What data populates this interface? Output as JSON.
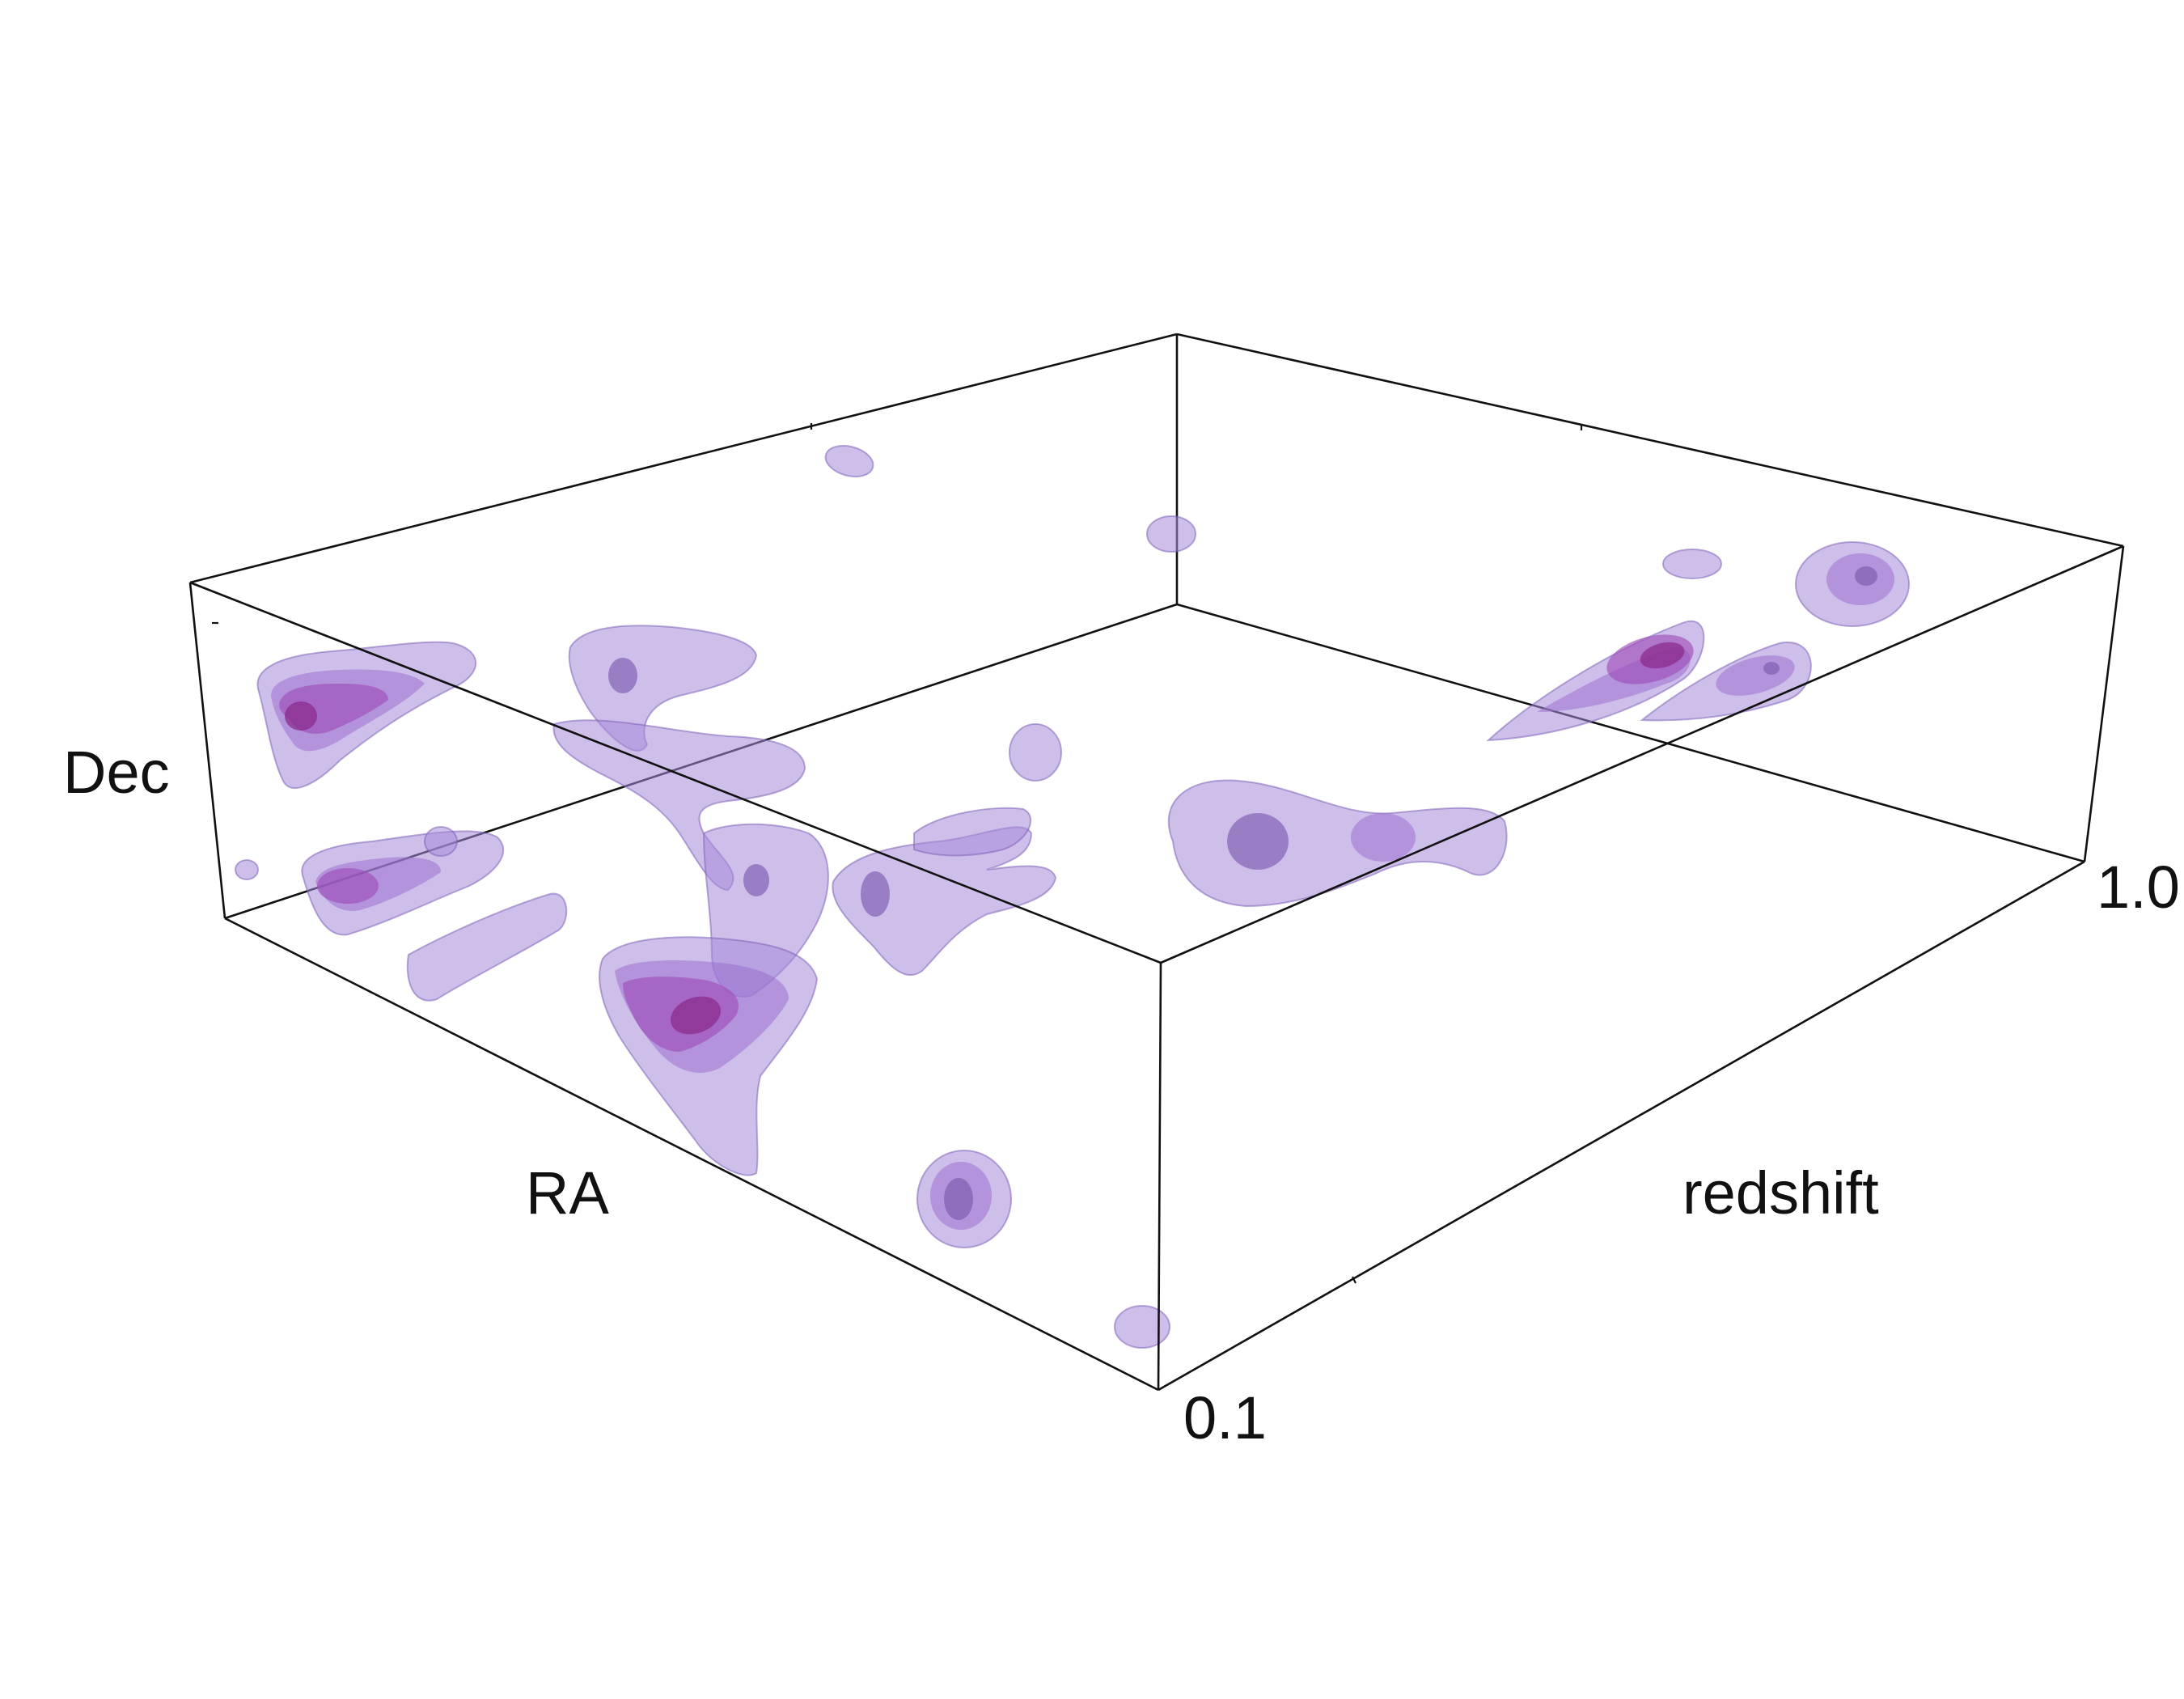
{
  "figure": {
    "axes": {
      "dec_label": "Dec",
      "ra_label": "RA",
      "redshift_label": "redshift",
      "redshift_min_label": "0.1",
      "redshift_max_label": "1.0"
    },
    "colors": {
      "box_lines": "#111111",
      "isosurface_outer": "#a58ad8",
      "isosurface_inner": "#8b2c8e"
    }
  }
}
